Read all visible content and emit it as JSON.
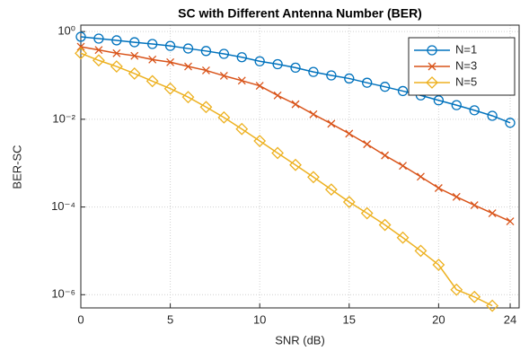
{
  "chart_data": {
    "type": "line",
    "title": "SC with Different Antenna Number (BER)",
    "xlabel": "SNR (dB)",
    "ylabel": "BER-SC",
    "yscale": "log",
    "grid": true,
    "legend_loc": "upper-right",
    "x": [
      0,
      1,
      2,
      3,
      4,
      5,
      6,
      7,
      8,
      9,
      10,
      11,
      12,
      13,
      14,
      15,
      16,
      17,
      18,
      19,
      20,
      21,
      22,
      23,
      24
    ],
    "xlim": [
      0,
      24.5
    ],
    "xticks": [
      0,
      5,
      10,
      15,
      20,
      24
    ],
    "ylim": [
      5e-07,
      1.4
    ],
    "yticks": [
      {
        "value": 1,
        "label": "10⁰"
      },
      {
        "value": 0.01,
        "label": "10⁻²"
      },
      {
        "value": 0.0001,
        "label": "10⁻⁴"
      },
      {
        "value": 1e-06,
        "label": "10⁻⁶"
      }
    ],
    "series": [
      {
        "name": "N=1",
        "color": "#0072bd",
        "marker": "o",
        "values": [
          0.76,
          0.69,
          0.63,
          0.57,
          0.52,
          0.47,
          0.41,
          0.36,
          0.31,
          0.26,
          0.21,
          0.18,
          0.15,
          0.12,
          0.1,
          0.085,
          0.068,
          0.055,
          0.044,
          0.035,
          0.027,
          0.021,
          0.016,
          0.012,
          0.0083
        ]
      },
      {
        "name": "N=3",
        "color": "#d95319",
        "marker": "x",
        "values": [
          0.45,
          0.38,
          0.32,
          0.28,
          0.23,
          0.2,
          0.16,
          0.13,
          0.098,
          0.076,
          0.058,
          0.035,
          0.022,
          0.013,
          0.0079,
          0.0047,
          0.0027,
          0.0015,
          0.00087,
          0.00049,
          0.00027,
          0.00017,
          0.00011,
          7.2e-05,
          4.7e-05
        ]
      },
      {
        "name": "N=5",
        "color": "#edb120",
        "marker": "d",
        "values": [
          0.32,
          0.22,
          0.16,
          0.11,
          0.074,
          0.05,
          0.032,
          0.019,
          0.011,
          0.006,
          0.0032,
          0.0017,
          0.00091,
          0.00048,
          0.00025,
          0.00013,
          7.2e-05,
          3.9e-05,
          2e-05,
          1e-05,
          4.8e-06,
          1.3e-06,
          8.9e-07,
          5.6e-07,
          null
        ]
      }
    ]
  }
}
